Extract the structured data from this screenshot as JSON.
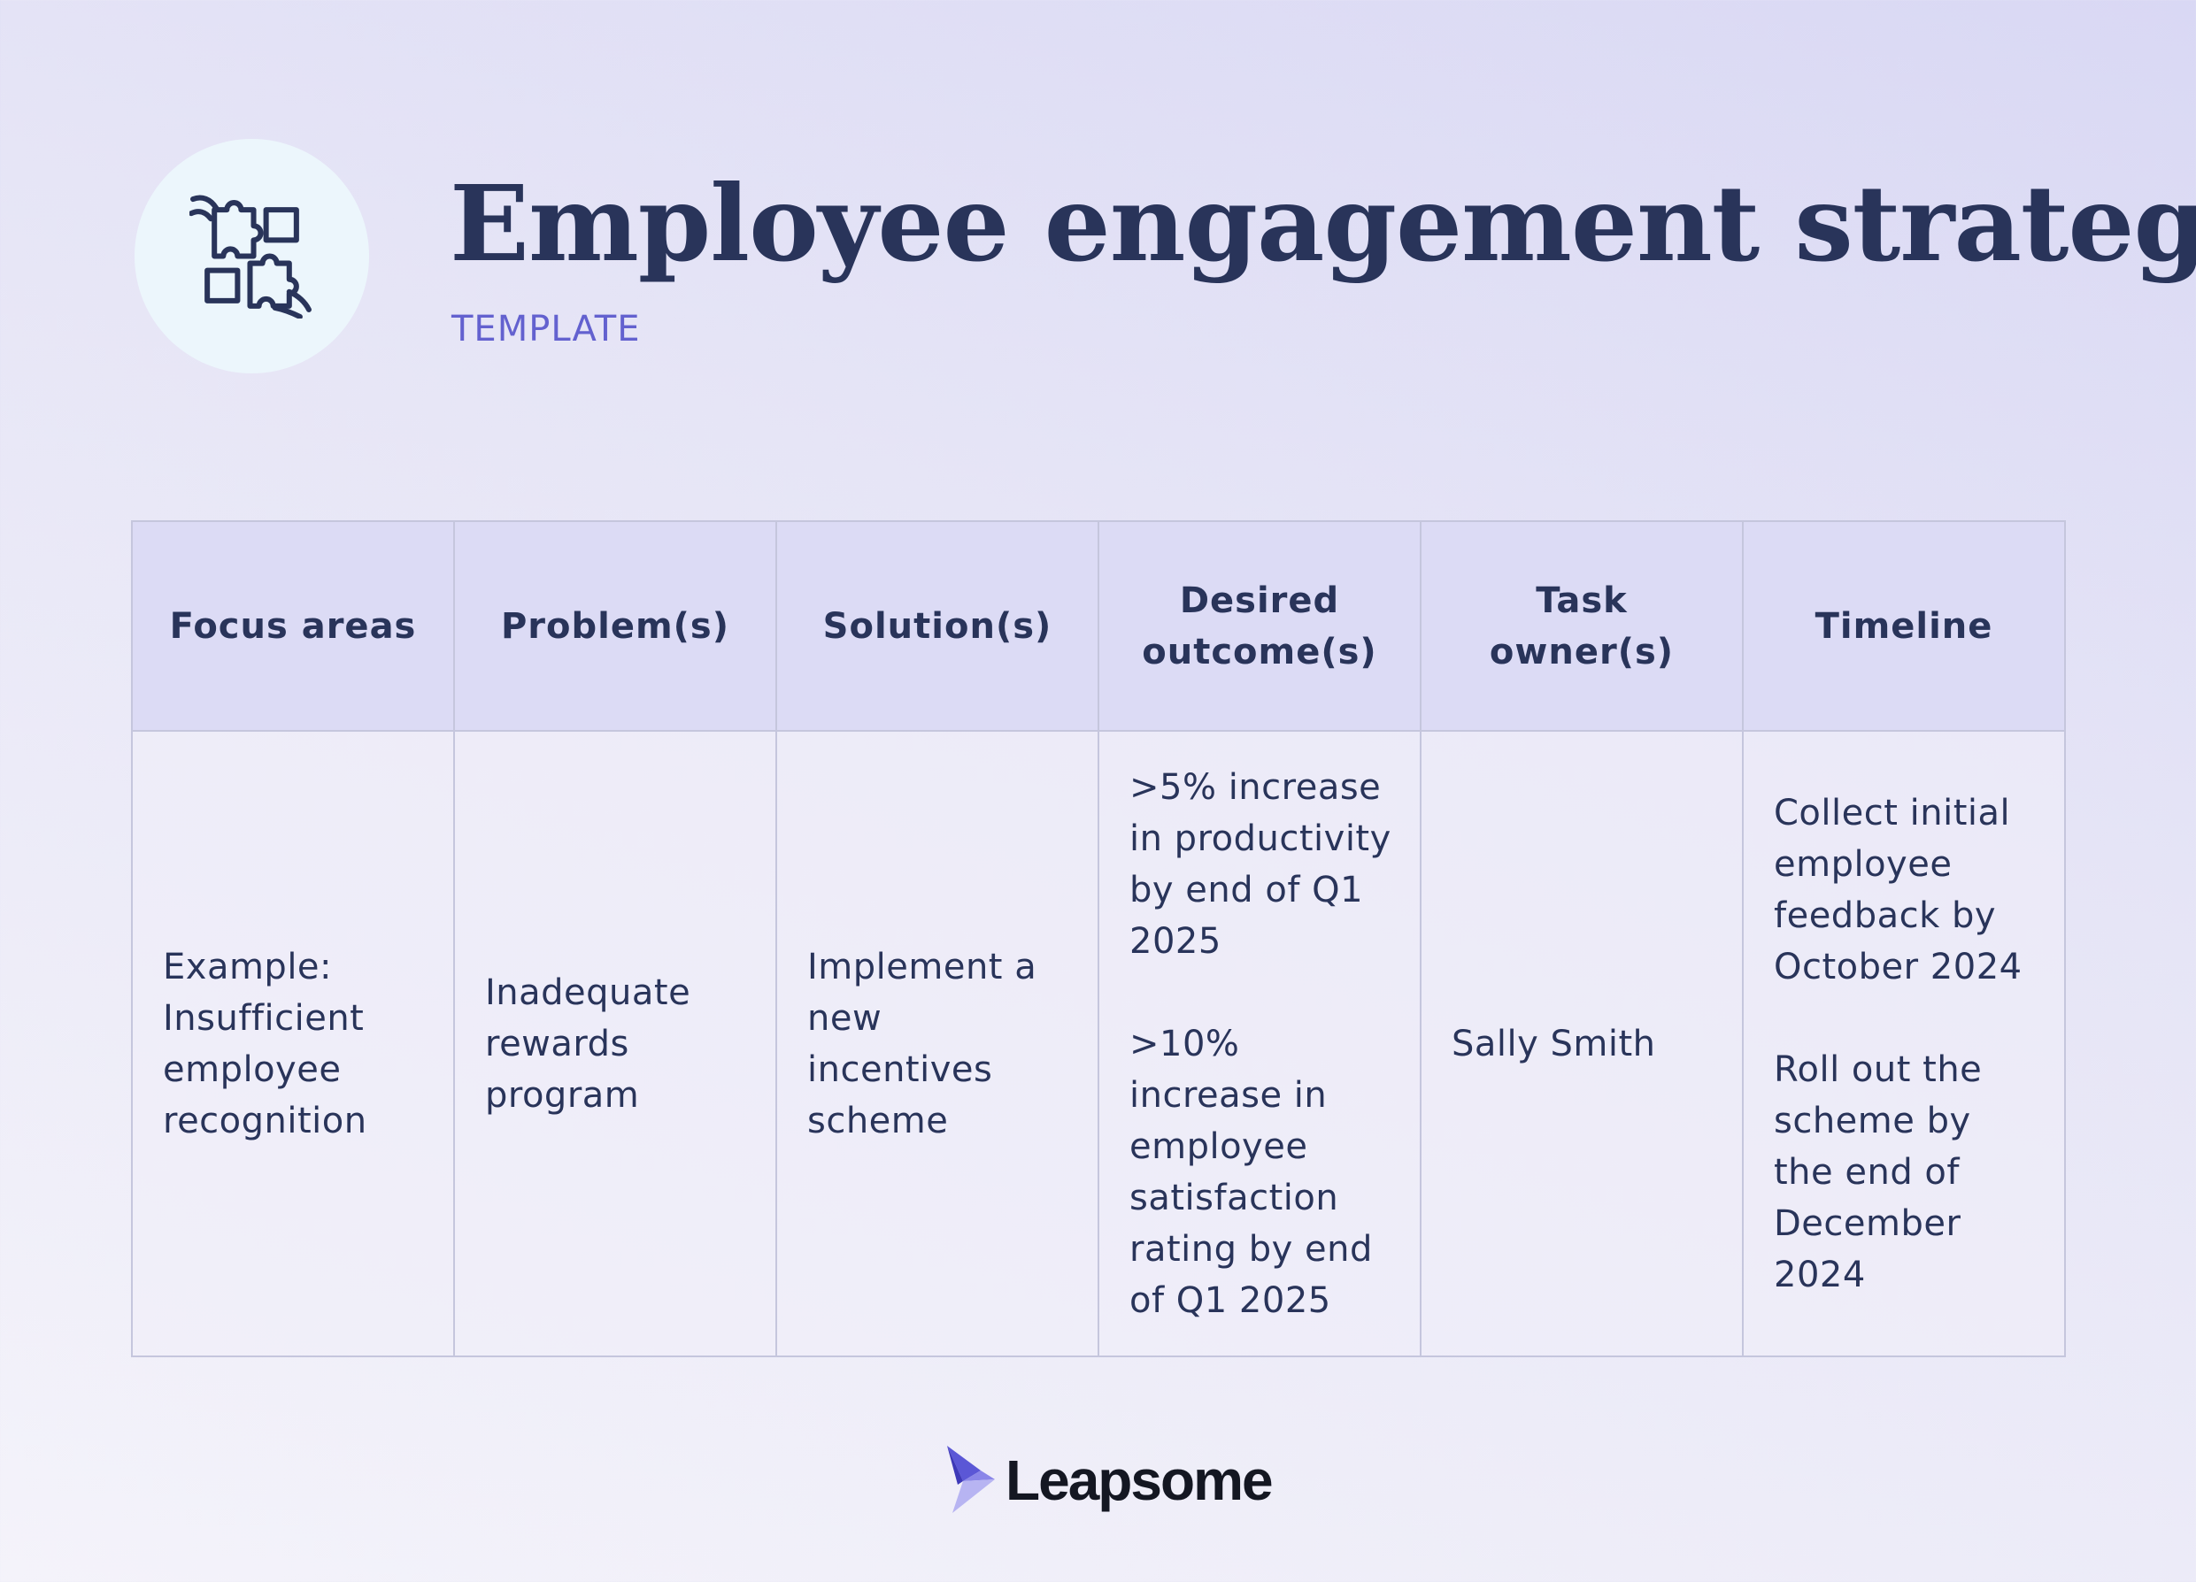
{
  "header": {
    "icon": "puzzle-pieces-hands-icon",
    "title": "Employee engagement strategy",
    "subtitle": "TEMPLATE"
  },
  "table": {
    "columns": [
      "Focus areas",
      "Problem(s)",
      "Solution(s)",
      "Desired outcome(s)",
      "Task owner(s)",
      "Timeline"
    ],
    "rows": [
      [
        "Example: Insufficient employee recognition",
        "Inadequate rewards program",
        "Implement a new incentives scheme",
        ">5% increase in productivity by end of Q1 2025\n\n>10% increase in employee satisfaction rating by end of Q1 2025",
        "Sally Smith",
        "Collect initial employee feedback by October 2024\n\nRoll out the scheme by the end of December 2024"
      ]
    ]
  },
  "footer": {
    "logo_icon": "leapsome-bird-icon",
    "logo_text": "Leapsome"
  },
  "colors": {
    "title": "#29345a",
    "subtitle": "#6361cf",
    "header_row": "#dcdbf5",
    "border": "#c5c6dd",
    "icon_circle": "#ecf6fc"
  }
}
